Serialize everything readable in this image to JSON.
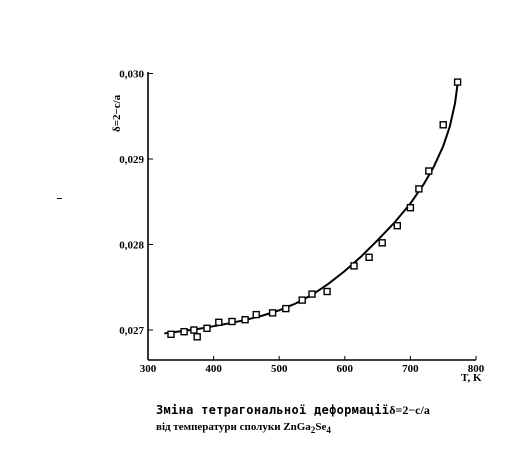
{
  "chart_data": {
    "type": "scatter",
    "xlabel": "T, K",
    "ylabel": "δ=2−c/a",
    "x_ticks": [
      "300",
      "400",
      "500",
      "600",
      "700",
      "800"
    ],
    "y_ticks": [
      "0,027",
      "0,028",
      "0,029",
      "0,030"
    ],
    "xlim": [
      300,
      800
    ],
    "ylim": [
      0.0268,
      0.03
    ],
    "grid": false,
    "legend": "none",
    "series": [
      {
        "points": [
          {
            "x": 335,
            "y": 0.02695
          },
          {
            "x": 355,
            "y": 0.02698
          },
          {
            "x": 370,
            "y": 0.027
          },
          {
            "x": 375,
            "y": 0.02692
          },
          {
            "x": 390,
            "y": 0.02702
          },
          {
            "x": 408,
            "y": 0.02709
          },
          {
            "x": 428,
            "y": 0.0271
          },
          {
            "x": 448,
            "y": 0.02712
          },
          {
            "x": 465,
            "y": 0.02718
          },
          {
            "x": 490,
            "y": 0.0272
          },
          {
            "x": 510,
            "y": 0.02725
          },
          {
            "x": 535,
            "y": 0.02735
          },
          {
            "x": 550,
            "y": 0.02742
          },
          {
            "x": 573,
            "y": 0.02745
          },
          {
            "x": 614,
            "y": 0.02775
          },
          {
            "x": 637,
            "y": 0.02785
          },
          {
            "x": 657,
            "y": 0.02802
          },
          {
            "x": 680,
            "y": 0.02822
          },
          {
            "x": 700,
            "y": 0.02843
          },
          {
            "x": 713,
            "y": 0.02865
          },
          {
            "x": 728,
            "y": 0.02886
          },
          {
            "x": 750,
            "y": 0.0294
          },
          {
            "x": 772,
            "y": 0.0299
          }
        ],
        "fit_curve": [
          {
            "x": 325,
            "y": 0.02696
          },
          {
            "x": 350,
            "y": 0.026985
          },
          {
            "x": 375,
            "y": 0.02701
          },
          {
            "x": 400,
            "y": 0.027045
          },
          {
            "x": 425,
            "y": 0.02708
          },
          {
            "x": 450,
            "y": 0.02712
          },
          {
            "x": 475,
            "y": 0.02717
          },
          {
            "x": 500,
            "y": 0.02723
          },
          {
            "x": 525,
            "y": 0.02731
          },
          {
            "x": 550,
            "y": 0.02741
          },
          {
            "x": 575,
            "y": 0.02754
          },
          {
            "x": 600,
            "y": 0.02769
          },
          {
            "x": 625,
            "y": 0.02786
          },
          {
            "x": 650,
            "y": 0.02805
          },
          {
            "x": 675,
            "y": 0.02825
          },
          {
            "x": 700,
            "y": 0.02848
          },
          {
            "x": 720,
            "y": 0.0287
          },
          {
            "x": 735,
            "y": 0.0289
          },
          {
            "x": 750,
            "y": 0.02915
          },
          {
            "x": 760,
            "y": 0.02938
          },
          {
            "x": 768,
            "y": 0.02965
          },
          {
            "x": 772,
            "y": 0.02988
          }
        ],
        "color": "#000000"
      }
    ]
  },
  "caption": {
    "line1_text": "Зміна тетрагональної деформації",
    "line1_formula": "δ=2−c/a",
    "line2_prefix": "від температури сполуки ZnGa",
    "line2_sub1": "2",
    "line2_mid": "Se",
    "line2_sub2": "4"
  }
}
